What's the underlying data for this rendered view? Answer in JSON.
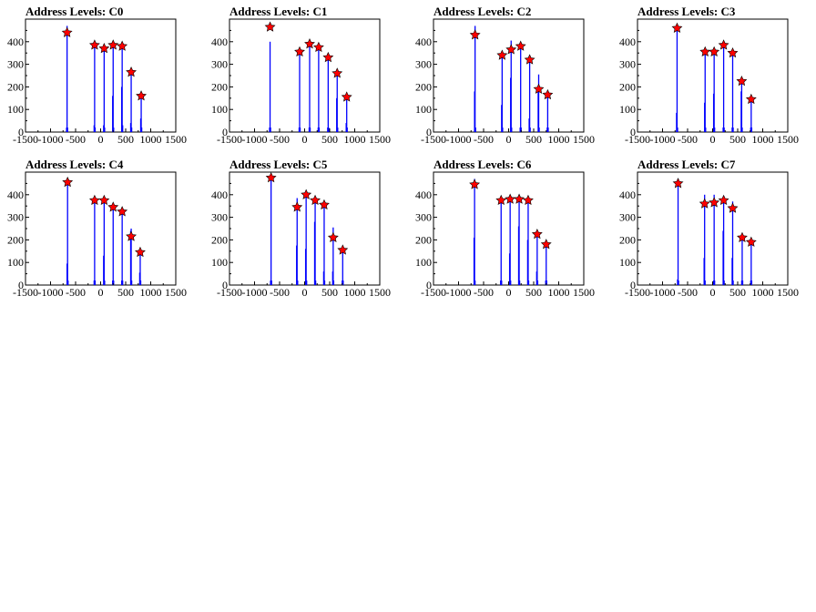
{
  "chart_data": [
    {
      "type": "bar",
      "title": "Address Levels: C0",
      "xlim": [
        -1500,
        1500
      ],
      "ylim": [
        0,
        500
      ],
      "xticks": [
        -1500,
        -1000,
        -500,
        0,
        500,
        1000,
        1500
      ],
      "yticks": [
        0,
        100,
        200,
        300,
        400
      ],
      "xtick_labels": [
        "-1500",
        "-1000",
        "-500",
        "0",
        "500",
        "1000",
        "1500"
      ],
      "ytick_labels": [
        "0",
        "100",
        "200",
        "300",
        "400"
      ],
      "bins": [
        [
          -680,
          20
        ],
        [
          -670,
          470
        ],
        [
          -660,
          20
        ],
        [
          -130,
          30
        ],
        [
          -120,
          395
        ],
        [
          -110,
          20
        ],
        [
          60,
          30
        ],
        [
          70,
          380
        ],
        [
          80,
          20
        ],
        [
          240,
          160
        ],
        [
          250,
          390
        ],
        [
          260,
          20
        ],
        [
          420,
          200
        ],
        [
          430,
          390
        ],
        [
          440,
          30
        ],
        [
          600,
          40
        ],
        [
          610,
          265
        ],
        [
          620,
          20
        ],
        [
          800,
          60
        ],
        [
          810,
          155
        ],
        [
          820,
          20
        ]
      ],
      "peaks": [
        {
          "x": -670,
          "y": 440
        },
        {
          "x": -120,
          "y": 385
        },
        {
          "x": 70,
          "y": 370
        },
        {
          "x": 250,
          "y": 385
        },
        {
          "x": 430,
          "y": 380
        },
        {
          "x": 610,
          "y": 265
        },
        {
          "x": 810,
          "y": 160
        }
      ]
    },
    {
      "type": "bar",
      "title": "Address Levels: C1",
      "xlim": [
        -1500,
        1500
      ],
      "ylim": [
        0,
        500
      ],
      "xticks": [
        -1500,
        -1000,
        -500,
        0,
        500,
        1000,
        1500
      ],
      "yticks": [
        0,
        100,
        200,
        300,
        400
      ],
      "xtick_labels": [
        "-1500",
        "-1000",
        "-500",
        "0",
        "500",
        "1000",
        "1500"
      ],
      "ytick_labels": [
        "0",
        "100",
        "200",
        "300",
        "400"
      ],
      "bins": [
        [
          -700,
          20
        ],
        [
          -690,
          400
        ],
        [
          -680,
          20
        ],
        [
          -110,
          20
        ],
        [
          -100,
          355
        ],
        [
          -90,
          20
        ],
        [
          90,
          20
        ],
        [
          100,
          390
        ],
        [
          110,
          20
        ],
        [
          270,
          20
        ],
        [
          280,
          380
        ],
        [
          290,
          20
        ],
        [
          460,
          20
        ],
        [
          470,
          330
        ],
        [
          480,
          20
        ],
        [
          640,
          150
        ],
        [
          650,
          270
        ],
        [
          660,
          20
        ],
        [
          830,
          40
        ],
        [
          840,
          170
        ],
        [
          850,
          20
        ]
      ],
      "peaks": [
        {
          "x": -690,
          "y": 465
        },
        {
          "x": -100,
          "y": 355
        },
        {
          "x": 100,
          "y": 390
        },
        {
          "x": 280,
          "y": 375
        },
        {
          "x": 470,
          "y": 330
        },
        {
          "x": 650,
          "y": 260
        },
        {
          "x": 840,
          "y": 155
        }
      ]
    },
    {
      "type": "bar",
      "title": "Address Levels: C2",
      "xlim": [
        -1500,
        1500
      ],
      "ylim": [
        0,
        500
      ],
      "xticks": [
        -1500,
        -1000,
        -500,
        0,
        500,
        1000,
        1500
      ],
      "yticks": [
        0,
        100,
        200,
        300,
        400
      ],
      "xtick_labels": [
        "-1500",
        "-1000",
        "-500",
        "0",
        "500",
        "1000",
        "1500"
      ],
      "ytick_labels": [
        "0",
        "100",
        "200",
        "300",
        "400"
      ],
      "bins": [
        [
          -680,
          180
        ],
        [
          -670,
          470
        ],
        [
          -660,
          20
        ],
        [
          -140,
          120
        ],
        [
          -130,
          350
        ],
        [
          -120,
          20
        ],
        [
          40,
          240
        ],
        [
          50,
          405
        ],
        [
          60,
          20
        ],
        [
          230,
          20
        ],
        [
          240,
          390
        ],
        [
          250,
          20
        ],
        [
          410,
          60
        ],
        [
          420,
          340
        ],
        [
          430,
          20
        ],
        [
          590,
          200
        ],
        [
          600,
          255
        ],
        [
          610,
          20
        ],
        [
          770,
          20
        ],
        [
          780,
          165
        ],
        [
          790,
          20
        ]
      ],
      "peaks": [
        {
          "x": -670,
          "y": 430
        },
        {
          "x": -130,
          "y": 340
        },
        {
          "x": 50,
          "y": 365
        },
        {
          "x": 240,
          "y": 380
        },
        {
          "x": 420,
          "y": 320
        },
        {
          "x": 600,
          "y": 190
        },
        {
          "x": 780,
          "y": 165
        }
      ]
    },
    {
      "type": "bar",
      "title": "Address Levels: C3",
      "xlim": [
        -1500,
        1500
      ],
      "ylim": [
        0,
        500
      ],
      "xticks": [
        -1500,
        -1000,
        -500,
        0,
        500,
        1000,
        1500
      ],
      "yticks": [
        0,
        100,
        200,
        300,
        400
      ],
      "xtick_labels": [
        "-1500",
        "-1000",
        "-500",
        "0",
        "500",
        "1000",
        "1500"
      ],
      "ytick_labels": [
        "0",
        "100",
        "200",
        "300",
        "400"
      ],
      "bins": [
        [
          -720,
          85
        ],
        [
          -710,
          470
        ],
        [
          -700,
          20
        ],
        [
          -160,
          130
        ],
        [
          -150,
          365
        ],
        [
          -140,
          20
        ],
        [
          20,
          170
        ],
        [
          30,
          360
        ],
        [
          40,
          20
        ],
        [
          210,
          20
        ],
        [
          220,
          390
        ],
        [
          230,
          20
        ],
        [
          390,
          20
        ],
        [
          400,
          355
        ],
        [
          410,
          20
        ],
        [
          570,
          180
        ],
        [
          580,
          230
        ],
        [
          590,
          20
        ],
        [
          760,
          20
        ],
        [
          770,
          150
        ],
        [
          780,
          20
        ]
      ],
      "peaks": [
        {
          "x": -710,
          "y": 460
        },
        {
          "x": -150,
          "y": 355
        },
        {
          "x": 30,
          "y": 355
        },
        {
          "x": 220,
          "y": 385
        },
        {
          "x": 400,
          "y": 350
        },
        {
          "x": 580,
          "y": 225
        },
        {
          "x": 770,
          "y": 145
        }
      ]
    },
    {
      "type": "bar",
      "title": "Address Levels: C4",
      "xlim": [
        -1500,
        1500
      ],
      "ylim": [
        0,
        500
      ],
      "xticks": [
        -1500,
        -1000,
        -500,
        0,
        500,
        1000,
        1500
      ],
      "yticks": [
        0,
        100,
        200,
        300,
        400
      ],
      "xtick_labels": [
        "-1500",
        "-1000",
        "-500",
        "0",
        "500",
        "1000",
        "1500"
      ],
      "ytick_labels": [
        "0",
        "100",
        "200",
        "300",
        "400"
      ],
      "bins": [
        [
          -670,
          95
        ],
        [
          -660,
          470
        ],
        [
          -650,
          20
        ],
        [
          -130,
          20
        ],
        [
          -120,
          385
        ],
        [
          -110,
          20
        ],
        [
          60,
          130
        ],
        [
          70,
          385
        ],
        [
          80,
          20
        ],
        [
          240,
          20
        ],
        [
          250,
          360
        ],
        [
          260,
          20
        ],
        [
          420,
          20
        ],
        [
          430,
          340
        ],
        [
          440,
          20
        ],
        [
          600,
          240
        ],
        [
          610,
          250
        ],
        [
          620,
          20
        ],
        [
          780,
          55
        ],
        [
          790,
          160
        ],
        [
          800,
          20
        ]
      ],
      "peaks": [
        {
          "x": -660,
          "y": 455
        },
        {
          "x": -120,
          "y": 375
        },
        {
          "x": 70,
          "y": 375
        },
        {
          "x": 250,
          "y": 345
        },
        {
          "x": 430,
          "y": 325
        },
        {
          "x": 610,
          "y": 215
        },
        {
          "x": 790,
          "y": 145
        }
      ]
    },
    {
      "type": "bar",
      "title": "Address Levels: C5",
      "xlim": [
        -1500,
        1500
      ],
      "ylim": [
        0,
        500
      ],
      "xticks": [
        -1500,
        -1000,
        -500,
        0,
        500,
        1000,
        1500
      ],
      "yticks": [
        0,
        100,
        200,
        300,
        400
      ],
      "xtick_labels": [
        "-1500",
        "-1000",
        "-500",
        "0",
        "500",
        "1000",
        "1500"
      ],
      "ytick_labels": [
        "0",
        "100",
        "200",
        "300",
        "400"
      ],
      "bins": [
        [
          -680,
          20
        ],
        [
          -670,
          480
        ],
        [
          -660,
          20
        ],
        [
          -160,
          175
        ],
        [
          -150,
          385
        ],
        [
          -140,
          20
        ],
        [
          20,
          160
        ],
        [
          30,
          405
        ],
        [
          40,
          20
        ],
        [
          200,
          280
        ],
        [
          210,
          375
        ],
        [
          220,
          20
        ],
        [
          380,
          60
        ],
        [
          390,
          365
        ],
        [
          400,
          20
        ],
        [
          560,
          60
        ],
        [
          570,
          255
        ],
        [
          580,
          20
        ],
        [
          750,
          20
        ],
        [
          760,
          160
        ],
        [
          770,
          20
        ]
      ],
      "peaks": [
        {
          "x": -670,
          "y": 475
        },
        {
          "x": -150,
          "y": 345
        },
        {
          "x": 30,
          "y": 400
        },
        {
          "x": 210,
          "y": 375
        },
        {
          "x": 390,
          "y": 355
        },
        {
          "x": 570,
          "y": 210
        },
        {
          "x": 760,
          "y": 155
        }
      ]
    },
    {
      "type": "bar",
      "title": "Address Levels: C6",
      "xlim": [
        -1500,
        1500
      ],
      "ylim": [
        0,
        500
      ],
      "xticks": [
        -1500,
        -1000,
        -500,
        0,
        500,
        1000,
        1500
      ],
      "yticks": [
        0,
        100,
        200,
        300,
        400
      ],
      "xtick_labels": [
        "-1500",
        "-1000",
        "-500",
        "0",
        "500",
        "1000",
        "1500"
      ],
      "ytick_labels": [
        "0",
        "100",
        "200",
        "300",
        "400"
      ],
      "bins": [
        [
          -690,
          210
        ],
        [
          -680,
          470
        ],
        [
          -670,
          20
        ],
        [
          -160,
          20
        ],
        [
          -150,
          385
        ],
        [
          -140,
          20
        ],
        [
          20,
          140
        ],
        [
          30,
          395
        ],
        [
          40,
          20
        ],
        [
          200,
          260
        ],
        [
          210,
          380
        ],
        [
          220,
          20
        ],
        [
          380,
          200
        ],
        [
          390,
          390
        ],
        [
          400,
          20
        ],
        [
          560,
          60
        ],
        [
          570,
          240
        ],
        [
          580,
          20
        ],
        [
          740,
          20
        ],
        [
          750,
          180
        ],
        [
          760,
          20
        ]
      ],
      "peaks": [
        {
          "x": -680,
          "y": 445
        },
        {
          "x": -150,
          "y": 375
        },
        {
          "x": 30,
          "y": 380
        },
        {
          "x": 210,
          "y": 380
        },
        {
          "x": 390,
          "y": 375
        },
        {
          "x": 570,
          "y": 225
        },
        {
          "x": 750,
          "y": 180
        }
      ]
    },
    {
      "type": "bar",
      "title": "Address Levels: C7",
      "xlim": [
        -1500,
        1500
      ],
      "ylim": [
        0,
        500
      ],
      "xticks": [
        -1500,
        -1000,
        -500,
        0,
        500,
        1000,
        1500
      ],
      "yticks": [
        0,
        100,
        200,
        300,
        400
      ],
      "xtick_labels": [
        "-1500",
        "-1000",
        "-500",
        "0",
        "500",
        "1000",
        "1500"
      ],
      "ytick_labels": [
        "0",
        "100",
        "200",
        "300",
        "400"
      ],
      "bins": [
        [
          -700,
          25
        ],
        [
          -690,
          470
        ],
        [
          -680,
          20
        ],
        [
          -170,
          120
        ],
        [
          -160,
          400
        ],
        [
          -150,
          20
        ],
        [
          20,
          20
        ],
        [
          30,
          400
        ],
        [
          40,
          20
        ],
        [
          210,
          240
        ],
        [
          220,
          395
        ],
        [
          230,
          20
        ],
        [
          390,
          120
        ],
        [
          400,
          370
        ],
        [
          410,
          20
        ],
        [
          580,
          20
        ],
        [
          590,
          210
        ],
        [
          600,
          20
        ],
        [
          760,
          20
        ],
        [
          770,
          195
        ],
        [
          780,
          20
        ]
      ],
      "peaks": [
        {
          "x": -690,
          "y": 450
        },
        {
          "x": -160,
          "y": 360
        },
        {
          "x": 30,
          "y": 365
        },
        {
          "x": 220,
          "y": 375
        },
        {
          "x": 400,
          "y": 340
        },
        {
          "x": 590,
          "y": 210
        },
        {
          "x": 770,
          "y": 190
        }
      ]
    }
  ],
  "colors": {
    "bars": "#0000ff",
    "markers_fill": "#ff0000",
    "markers_stroke": "#000000",
    "axes": "#000000"
  }
}
